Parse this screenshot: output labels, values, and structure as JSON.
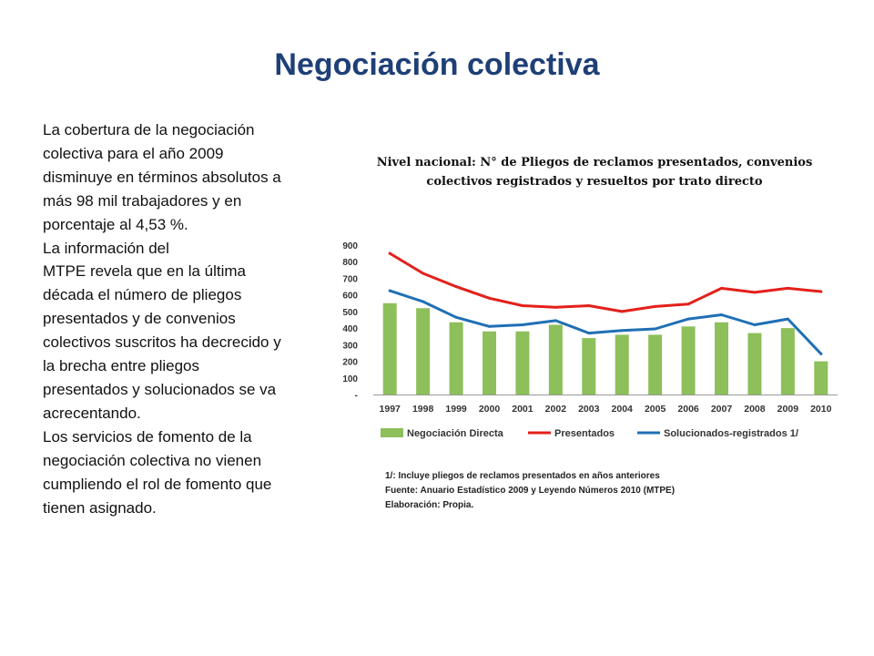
{
  "slide": {
    "title": "Negociación colectiva",
    "paragraphs": [
      "La cobertura de la negociación colectiva  para el año 2009 disminuye en términos absolutos a más 98 mil trabajadores y en porcentaje al 4,53 %.",
      "La información del",
      " MTPE revela que en la última década el número de pliegos presentados y de convenios colectivos suscritos ha decrecido y la brecha entre pliegos presentados y solucionados se va acrecentando.",
      "Los servicios de fomento de la negociación colectiva no vienen cumpliendo el rol de fomento que tienen asignado."
    ],
    "notes": [
      "1/: Incluye pliegos de reclamos presentados en años anteriores",
      "Fuente: Anuario Estadístico  2009 y Leyendo Números 2010 (MTPE)",
      "Elaboración:  Propia."
    ]
  },
  "chart_data": {
    "type": "bar",
    "title": "Nivel nacional: N° de Pliegos de reclamos presentados, convenios colectivos registrados y resueltos por trato directo",
    "categories": [
      "1997",
      "1998",
      "1999",
      "2000",
      "2001",
      "2002",
      "2003",
      "2004",
      "2005",
      "2006",
      "2007",
      "2008",
      "2009",
      "2010"
    ],
    "ylim": [
      0,
      900
    ],
    "yticks": [
      0,
      100,
      200,
      300,
      400,
      500,
      600,
      700,
      800,
      900
    ],
    "ytick_labels": [
      "-",
      "100",
      "200",
      "300",
      "400",
      "500",
      "600",
      "700",
      "800",
      "900"
    ],
    "series": [
      {
        "name": "Negociación Directa",
        "type": "bar",
        "color": "#8dbf5a",
        "values": [
          550,
          520,
          435,
          380,
          380,
          420,
          340,
          360,
          360,
          410,
          435,
          370,
          400,
          200
        ]
      },
      {
        "name": "Presentados",
        "type": "line",
        "color": "#e3201b",
        "values": [
          850,
          730,
          650,
          580,
          535,
          525,
          535,
          500,
          530,
          545,
          640,
          615,
          640,
          620
        ]
      },
      {
        "name": "Solucionados-registrados 1/",
        "type": "line",
        "color": "#1f6fb5",
        "values": [
          625,
          560,
          465,
          410,
          420,
          445,
          370,
          385,
          395,
          455,
          480,
          420,
          455,
          245
        ]
      }
    ],
    "legend_position": "bottom",
    "grid": false
  }
}
